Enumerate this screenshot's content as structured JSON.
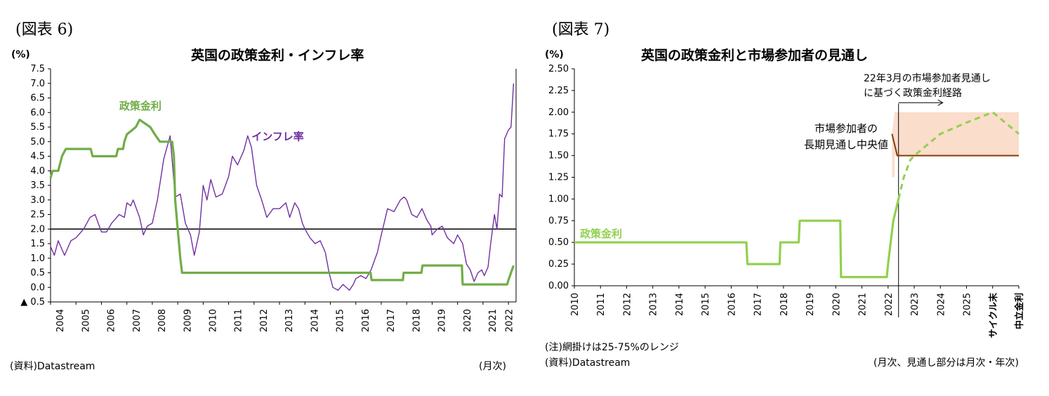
{
  "figures": {
    "left": {
      "label": "(図表 6)",
      "title": "英国の政策金利・インフレ率",
      "unit": "(%)",
      "source": "(資料)Datastream",
      "period_note": "(月次)"
    },
    "right": {
      "label": "(図表 7)",
      "title": "英国の政策金利と市場参加者の見通し",
      "unit": "(%)",
      "note": "(注)網掛けは25-75%のレンジ",
      "source": "(資料)Datastream",
      "period_note": "(月次、見通し部分は月次・年次)"
    }
  },
  "chart_data": [
    {
      "type": "line",
      "title": "英国の政策金利・インフレ率",
      "ylabel": "(%)",
      "ylim": [
        -0.5,
        7.5
      ],
      "y_ticks": [
        -0.5,
        0.0,
        0.5,
        1.0,
        1.5,
        2.0,
        2.5,
        3.0,
        3.5,
        4.0,
        4.5,
        5.0,
        5.5,
        6.0,
        6.5,
        7.0,
        7.5
      ],
      "y_tick_labels": [
        "▲ 0.5",
        "0.0",
        "0.5",
        "1.0",
        "1.5",
        "2.0",
        "2.5",
        "3.0",
        "3.5",
        "4.0",
        "4.5",
        "5.0",
        "5.5",
        "6.0",
        "6.5",
        "7.0",
        "7.5"
      ],
      "x_ticks": [
        "2004",
        "2005",
        "2006",
        "2007",
        "2008",
        "2009",
        "2010",
        "2011",
        "2012",
        "2013",
        "2014",
        "2015",
        "2016",
        "2017",
        "2018",
        "2019",
        "2020",
        "2021",
        "2022"
      ],
      "reference_line": 2.0,
      "series": [
        {
          "name": "政策金利",
          "color": "#70AD47",
          "points": [
            [
              2004.0,
              3.75
            ],
            [
              2004.08,
              4.0
            ],
            [
              2004.3,
              4.0
            ],
            [
              2004.45,
              4.5
            ],
            [
              2004.6,
              4.75
            ],
            [
              2005.58,
              4.75
            ],
            [
              2005.65,
              4.5
            ],
            [
              2006.58,
              4.5
            ],
            [
              2006.65,
              4.75
            ],
            [
              2006.85,
              4.75
            ],
            [
              2006.9,
              5.0
            ],
            [
              2007.0,
              5.25
            ],
            [
              2007.35,
              5.5
            ],
            [
              2007.5,
              5.75
            ],
            [
              2007.92,
              5.5
            ],
            [
              2008.1,
              5.25
            ],
            [
              2008.3,
              5.0
            ],
            [
              2008.78,
              5.0
            ],
            [
              2008.85,
              4.5
            ],
            [
              2008.9,
              3.0
            ],
            [
              2009.0,
              2.0
            ],
            [
              2009.1,
              1.0
            ],
            [
              2009.17,
              0.5
            ],
            [
              2016.58,
              0.5
            ],
            [
              2016.62,
              0.25
            ],
            [
              2017.85,
              0.25
            ],
            [
              2017.88,
              0.5
            ],
            [
              2018.58,
              0.5
            ],
            [
              2018.62,
              0.75
            ],
            [
              2020.17,
              0.75
            ],
            [
              2020.2,
              0.1
            ],
            [
              2021.95,
              0.1
            ],
            [
              2022.0,
              0.25
            ],
            [
              2022.1,
              0.5
            ],
            [
              2022.2,
              0.75
            ]
          ]
        },
        {
          "name": "インフレ率",
          "color": "#7030A0",
          "points": [
            [
              2004.0,
              1.4
            ],
            [
              2004.15,
              1.1
            ],
            [
              2004.3,
              1.6
            ],
            [
              2004.55,
              1.1
            ],
            [
              2004.8,
              1.6
            ],
            [
              2005.0,
              1.7
            ],
            [
              2005.3,
              2.0
            ],
            [
              2005.55,
              2.4
            ],
            [
              2005.75,
              2.5
            ],
            [
              2006.0,
              1.9
            ],
            [
              2006.2,
              1.9
            ],
            [
              2006.4,
              2.2
            ],
            [
              2006.7,
              2.5
            ],
            [
              2006.9,
              2.4
            ],
            [
              2007.0,
              2.9
            ],
            [
              2007.15,
              2.8
            ],
            [
              2007.25,
              3.0
            ],
            [
              2007.5,
              2.4
            ],
            [
              2007.65,
              1.8
            ],
            [
              2007.8,
              2.1
            ],
            [
              2008.0,
              2.2
            ],
            [
              2008.2,
              3.0
            ],
            [
              2008.45,
              4.4
            ],
            [
              2008.7,
              5.2
            ],
            [
              2008.9,
              3.1
            ],
            [
              2009.1,
              3.2
            ],
            [
              2009.3,
              2.2
            ],
            [
              2009.5,
              1.8
            ],
            [
              2009.65,
              1.1
            ],
            [
              2009.85,
              1.9
            ],
            [
              2010.0,
              3.5
            ],
            [
              2010.15,
              3.0
            ],
            [
              2010.3,
              3.7
            ],
            [
              2010.5,
              3.1
            ],
            [
              2010.75,
              3.2
            ],
            [
              2011.0,
              3.8
            ],
            [
              2011.15,
              4.5
            ],
            [
              2011.35,
              4.2
            ],
            [
              2011.6,
              4.7
            ],
            [
              2011.75,
              5.2
            ],
            [
              2011.9,
              4.8
            ],
            [
              2012.1,
              3.5
            ],
            [
              2012.3,
              3.0
            ],
            [
              2012.5,
              2.4
            ],
            [
              2012.75,
              2.7
            ],
            [
              2012.9,
              2.7
            ],
            [
              2013.0,
              2.7
            ],
            [
              2013.25,
              2.9
            ],
            [
              2013.4,
              2.4
            ],
            [
              2013.6,
              2.9
            ],
            [
              2013.75,
              2.7
            ],
            [
              2013.9,
              2.2
            ],
            [
              2014.0,
              2.0
            ],
            [
              2014.2,
              1.7
            ],
            [
              2014.4,
              1.5
            ],
            [
              2014.6,
              1.6
            ],
            [
              2014.8,
              1.2
            ],
            [
              2014.95,
              0.5
            ],
            [
              2015.1,
              0.0
            ],
            [
              2015.3,
              -0.1
            ],
            [
              2015.5,
              0.1
            ],
            [
              2015.75,
              -0.1
            ],
            [
              2015.9,
              0.1
            ],
            [
              2016.0,
              0.3
            ],
            [
              2016.2,
              0.4
            ],
            [
              2016.4,
              0.3
            ],
            [
              2016.6,
              0.6
            ],
            [
              2016.85,
              1.2
            ],
            [
              2017.0,
              1.8
            ],
            [
              2017.25,
              2.7
            ],
            [
              2017.5,
              2.6
            ],
            [
              2017.75,
              3.0
            ],
            [
              2017.9,
              3.1
            ],
            [
              2018.0,
              3.0
            ],
            [
              2018.2,
              2.5
            ],
            [
              2018.4,
              2.4
            ],
            [
              2018.6,
              2.7
            ],
            [
              2018.8,
              2.3
            ],
            [
              2018.95,
              2.1
            ],
            [
              2019.0,
              1.8
            ],
            [
              2019.2,
              2.0
            ],
            [
              2019.4,
              2.1
            ],
            [
              2019.6,
              1.7
            ],
            [
              2019.85,
              1.5
            ],
            [
              2020.0,
              1.8
            ],
            [
              2020.2,
              1.5
            ],
            [
              2020.35,
              0.8
            ],
            [
              2020.5,
              0.6
            ],
            [
              2020.65,
              0.2
            ],
            [
              2020.8,
              0.5
            ],
            [
              2020.95,
              0.6
            ],
            [
              2021.05,
              0.4
            ],
            [
              2021.2,
              0.7
            ],
            [
              2021.3,
              1.5
            ],
            [
              2021.45,
              2.5
            ],
            [
              2021.55,
              2.0
            ],
            [
              2021.65,
              3.2
            ],
            [
              2021.75,
              3.1
            ],
            [
              2021.85,
              5.1
            ],
            [
              2022.0,
              5.4
            ],
            [
              2022.1,
              5.5
            ],
            [
              2022.2,
              7.0
            ]
          ]
        }
      ]
    },
    {
      "type": "line",
      "title": "英国の政策金利と市場参加者の見通し",
      "ylabel": "(%)",
      "ylim": [
        0.0,
        2.5
      ],
      "y_ticks": [
        0.0,
        0.25,
        0.5,
        0.75,
        1.0,
        1.25,
        1.5,
        1.75,
        2.0,
        2.25,
        2.5
      ],
      "y_tick_labels": [
        "0.00",
        "0.25",
        "0.50",
        "0.75",
        "1.00",
        "1.25",
        "1.50",
        "1.75",
        "2.00",
        "2.25",
        "2.50"
      ],
      "x_ticks": [
        "2010",
        "2011",
        "2012",
        "2013",
        "2014",
        "2015",
        "2016",
        "2017",
        "2018",
        "2019",
        "2020",
        "2021",
        "2022",
        "2023",
        "2024",
        "2025",
        "サイクル末",
        "中立金利"
      ],
      "series": [
        {
          "name": "政策金利",
          "color": "#92D050",
          "points": [
            [
              0.0,
              0.5
            ],
            [
              6.58,
              0.5
            ],
            [
              6.62,
              0.25
            ],
            [
              7.85,
              0.25
            ],
            [
              7.88,
              0.5
            ],
            [
              8.58,
              0.5
            ],
            [
              8.62,
              0.75
            ],
            [
              10.17,
              0.75
            ],
            [
              10.2,
              0.1
            ],
            [
              11.95,
              0.1
            ],
            [
              12.0,
              0.25
            ],
            [
              12.1,
              0.5
            ],
            [
              12.2,
              0.75
            ],
            [
              12.4,
              1.0
            ]
          ]
        },
        {
          "name": "見通し",
          "color": "#92D050",
          "dashed": true,
          "points": [
            [
              12.4,
              1.0
            ],
            [
              12.6,
              1.25
            ],
            [
              12.85,
              1.45
            ],
            [
              13.0,
              1.5
            ],
            [
              14.0,
              1.75
            ],
            [
              15.0,
              1.88
            ],
            [
              16.0,
              2.0
            ],
            [
              17.0,
              1.75
            ]
          ]
        },
        {
          "name": "長期見通し中央値",
          "color": "#843C0C",
          "points": [
            [
              12.15,
              1.75
            ],
            [
              12.35,
              1.5
            ],
            [
              17.0,
              1.5
            ]
          ]
        }
      ],
      "range_band": {
        "label": "網掛けは25-75%のレンジ",
        "color": "#FBDDCB",
        "x_start": 12.25,
        "x_end": 17.0,
        "low": 1.5,
        "high": 2.0
      },
      "annotations": [
        {
          "text_lines": [
            "22年3月の市場参加者見通し",
            "に基づく政策金利経路"
          ]
        },
        {
          "text_lines": [
            "市場参加者の",
            "長期見通し中央値"
          ],
          "color": "#843C0C"
        }
      ],
      "series_labels": {
        "policy": "政策金利"
      }
    }
  ]
}
